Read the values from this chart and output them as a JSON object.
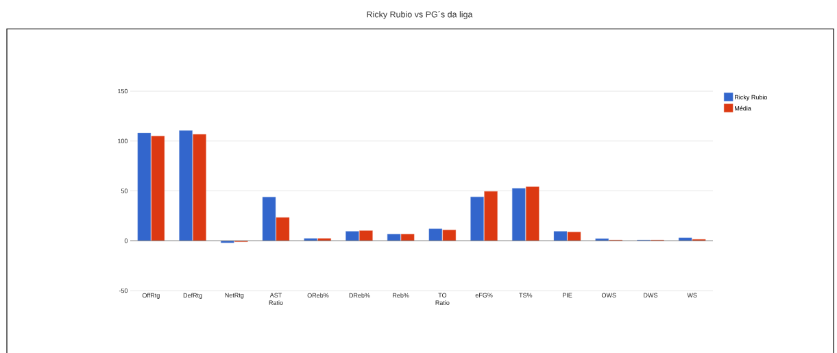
{
  "chart_data": {
    "type": "bar",
    "title": "Ricky Rubio vs PG´s da liga",
    "categories": [
      "OffRtg",
      "DefRtg",
      "NetRtg",
      "AST Ratio",
      "OReb%",
      "DReb%",
      "Reb%",
      "TO Ratio",
      "eFG%",
      "TS%",
      "PIE",
      "OWS",
      "DWS",
      "WS"
    ],
    "series": [
      {
        "name": "Ricky Rubio",
        "color": "#3366cc",
        "values": [
          108,
          110.4,
          -2,
          43.8,
          2.3,
          9.4,
          6.7,
          12,
          44,
          52.5,
          9.4,
          2.1,
          0.7,
          3
        ]
      },
      {
        "name": "Média",
        "color": "#dc3912",
        "values": [
          105,
          106.7,
          -1,
          23.3,
          2.3,
          10.1,
          6.7,
          10.8,
          49.5,
          54.1,
          8.8,
          0.7,
          0.7,
          1.4
        ]
      }
    ],
    "ylim": [
      -50,
      150
    ],
    "yticks": [
      -50,
      0,
      50,
      100,
      150
    ],
    "grid": "y",
    "legend": "top right"
  }
}
